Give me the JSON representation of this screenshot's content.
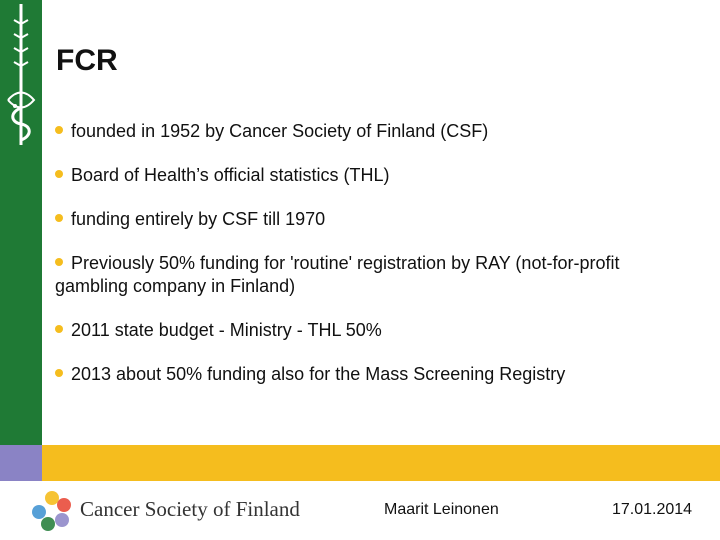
{
  "slide": {
    "title": "FCR",
    "bullets": [
      "founded in 1952 by Cancer Society of Finland (CSF)",
      "Board of Health’s official statistics (THL)",
      "funding entirely by CSF till 1970",
      "Previously 50% funding for 'routine' registration by RAY (not-for-profit gambling company in Finland)",
      "2011 state budget - Ministry - THL 50%",
      "2013 about 50% funding also for the Mass Screening Registry"
    ]
  },
  "footer": {
    "organization": "Cancer Society of Finland",
    "author": "Maarit Leinonen",
    "date": "17.01.2014"
  },
  "colors": {
    "left_bar": "#1f7a35",
    "left_bar_lower": "#8a83c5",
    "accent_band": "#f5bd1e",
    "bullet_dot": "#f5bd1e"
  },
  "icons": {
    "emblem": "sword-and-serpent-icon",
    "logo": "cancer-society-logo-icon"
  }
}
